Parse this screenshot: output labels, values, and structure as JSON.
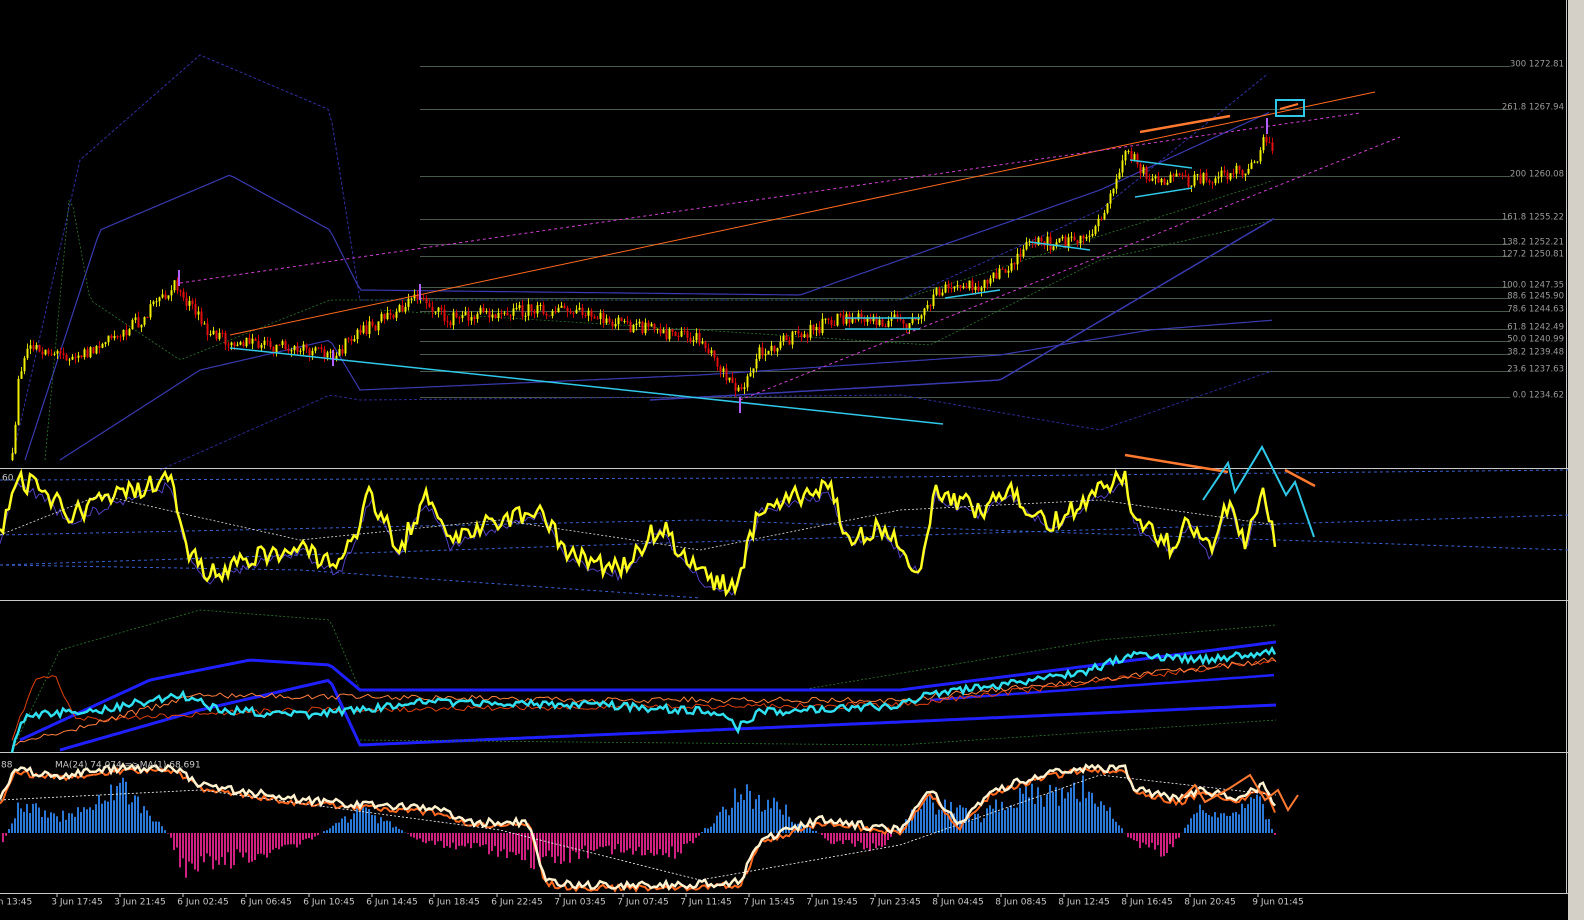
{
  "fib_levels": [
    "300 1272.81",
    "261.8 1267.94",
    "200 1260.08",
    "161.8 1255.22",
    "138.2 1252.21",
    "127.2 1250.81",
    "100.0 1247.35",
    "88.6 1245.90",
    "78.6 1244.63",
    "61.8 1242.49",
    "50.0 1240.99",
    "38.2 1239.48",
    "23.6 1237.63",
    "0.0 1234.62"
  ],
  "time_axis": [
    "n 13:45",
    "3 Jun 17:45",
    "3 Jun 21:45",
    "6 Jun 02:45",
    "6 Jun 06:45",
    "6 Jun 10:45",
    "6 Jun 14:45",
    "6 Jun 18:45",
    "6 Jun 22:45",
    "7 Jun 03:45",
    "7 Jun 07:45",
    "7 Jun 11:45",
    "7 Jun 15:45",
    "7 Jun 19:45",
    "7 Jun 23:45",
    "8 Jun 04:45",
    "8 Jun 08:45",
    "8 Jun 12:45",
    "8 Jun 16:45",
    "8 Jun 20:45",
    "9 Jun 01:45"
  ],
  "indicator_labels": {
    "oscillator": "60",
    "bottom_left": "88",
    "bottom_ma": "MA(24) 74.074  =>MA(1) 68.691"
  }
}
